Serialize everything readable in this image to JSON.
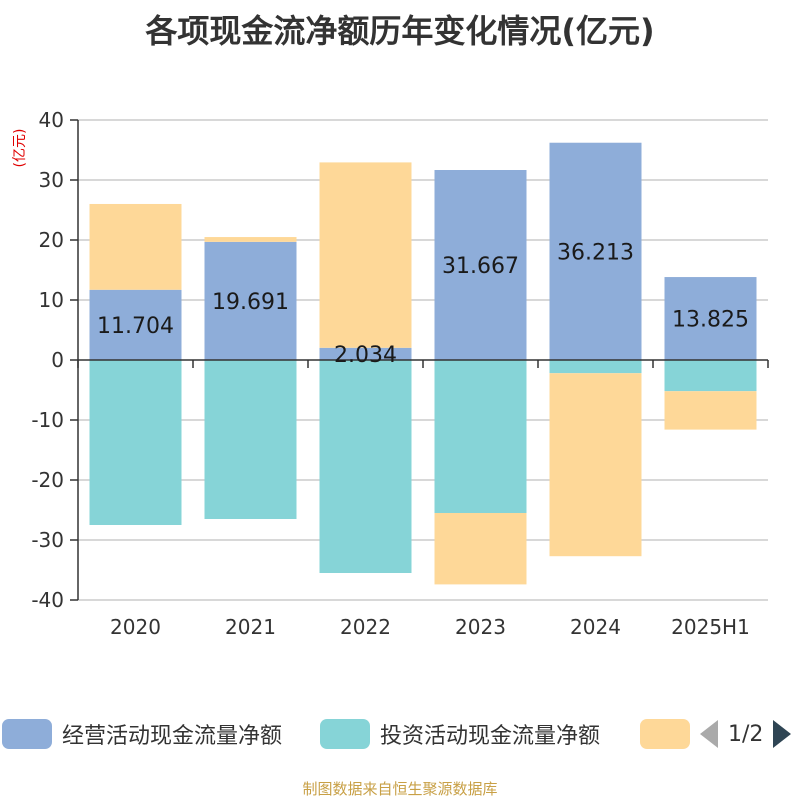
{
  "chart_data": {
    "type": "bar",
    "stacked": true,
    "title": "各项现金流净额历年变化情况(亿元)",
    "ylabel": "(亿元)",
    "categories": [
      "2020",
      "2021",
      "2022",
      "2023",
      "2024",
      "2025H1"
    ],
    "ylim": [
      -40,
      40
    ],
    "yticks": [
      40,
      30,
      20,
      10,
      0,
      -10,
      -20,
      -30,
      -40
    ],
    "grid": true,
    "series": [
      {
        "name": "经营活动现金流量净额",
        "color": "#8eadd9",
        "values": [
          11.704,
          19.691,
          2.034,
          31.667,
          36.213,
          13.825
        ],
        "value_labels": [
          "11.704",
          "19.691",
          "2.034",
          "31.667",
          "36.213",
          "13.825"
        ]
      },
      {
        "name": "投资活动现金流量净额",
        "color": "#86d4d7",
        "values": [
          -27.5,
          -26.5,
          -35.5,
          -25.5,
          -2.2,
          -5.2
        ]
      },
      {
        "name": "",
        "color": "#fed898",
        "values": [
          14.3,
          0.8,
          30.9,
          -11.9,
          -30.5,
          -6.4
        ]
      }
    ]
  },
  "legend": {
    "page_text": "1/2"
  },
  "footer": {
    "source": "制图数据来自恒生聚源数据库"
  }
}
